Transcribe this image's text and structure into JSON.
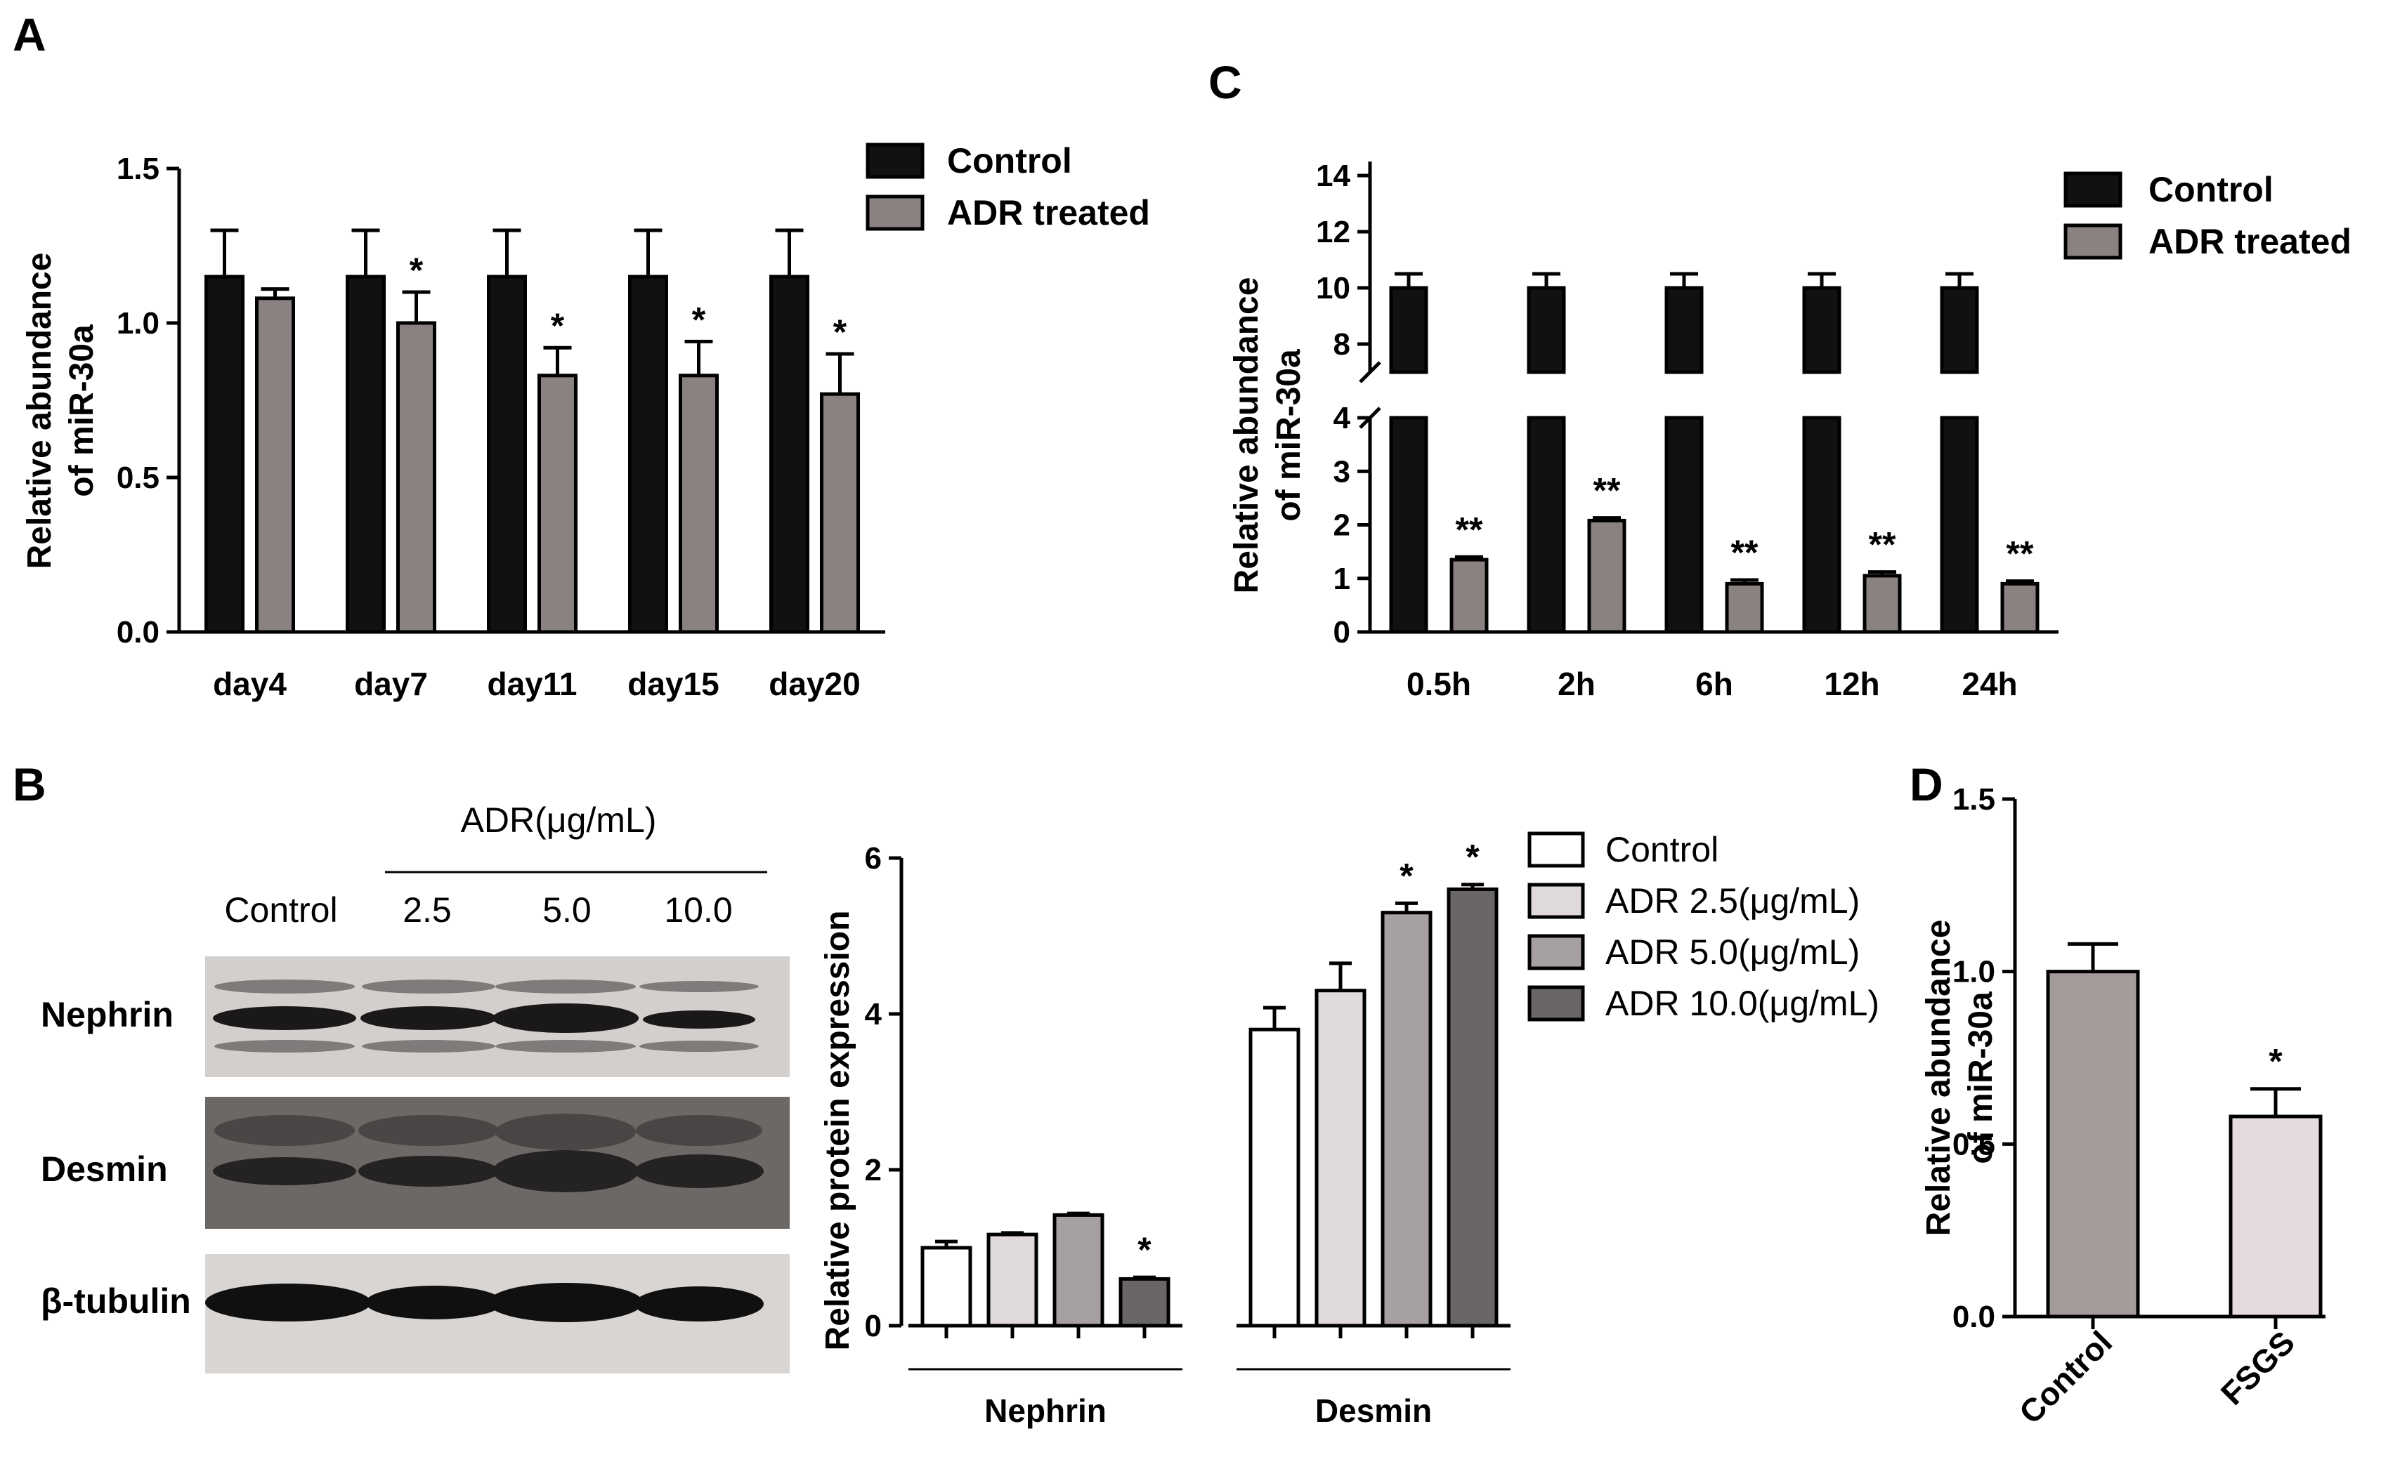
{
  "colors": {
    "control": "#111111",
    "adr": "#8a8280",
    "d_control": "#a39c9a",
    "d_fsgs": "#e4dcdc",
    "b_control": "#ffffff",
    "b_25": "#e0d9d9",
    "b_50": "#a6a0a0",
    "b_100": "#6a6666"
  },
  "panels": {
    "A": "A",
    "B": "B",
    "C": "C",
    "D": "D"
  },
  "blot": {
    "header": "ADR(μg/mL)",
    "lanes": [
      "Control",
      "2.5",
      "5.0",
      "10.0"
    ],
    "rows": [
      "Nephrin",
      "Desmin",
      "β-tubulin"
    ]
  },
  "chart_data": [
    {
      "panel": "A",
      "type": "bar",
      "ylabel_line1": "Relative abundance",
      "ylabel_line2": "of miR-30a",
      "categories": [
        "day4",
        "day7",
        "day11",
        "day15",
        "day20"
      ],
      "ylim": [
        0,
        1.5
      ],
      "yticks": [
        "0.0",
        "0.5",
        "1.0",
        "1.5"
      ],
      "legend": "top-right",
      "series": [
        {
          "name": "Control",
          "values": [
            1.15,
            1.15,
            1.15,
            1.15,
            1.15
          ],
          "errors": [
            0.15,
            0.15,
            0.15,
            0.15,
            0.15
          ]
        },
        {
          "name": "ADR treated",
          "values": [
            1.08,
            1.0,
            0.83,
            0.83,
            0.77
          ],
          "errors": [
            0.03,
            0.1,
            0.09,
            0.11,
            0.13
          ]
        }
      ],
      "annotations": [
        "",
        "*",
        "*",
        "*",
        "*"
      ]
    },
    {
      "panel": "C",
      "type": "bar",
      "ylabel_line1": "Relative abundance",
      "ylabel_line2": "of miR-30a",
      "categories": [
        "0.5h",
        "2h",
        "6h",
        "12h",
        "24h"
      ],
      "axis_break": [
        4,
        7
      ],
      "yticks": [
        "0",
        "1",
        "2",
        "3",
        "4",
        "8",
        "10",
        "12",
        "14"
      ],
      "legend": "top-right",
      "series": [
        {
          "name": "Control",
          "values": [
            10,
            10,
            10,
            10,
            10
          ],
          "errors": [
            0.5,
            0.5,
            0.5,
            0.5,
            0.5
          ]
        },
        {
          "name": "ADR treated",
          "values": [
            1.35,
            2.08,
            0.9,
            1.05,
            0.9
          ],
          "errors": [
            0.05,
            0.05,
            0.07,
            0.07,
            0.05
          ]
        }
      ],
      "annotations": [
        "**",
        "**",
        "**",
        "**",
        "**"
      ]
    },
    {
      "panel": "B",
      "type": "bar",
      "ylabel": "Relative protein expression",
      "categories": [
        "Nephrin",
        "Desmin"
      ],
      "ylim": [
        0,
        6
      ],
      "yticks": [
        "0",
        "2",
        "4",
        "6"
      ],
      "legend": "top-right",
      "series": [
        {
          "name": "Control",
          "values": [
            1.0,
            3.8
          ],
          "errors": [
            0.08,
            0.28
          ]
        },
        {
          "name": "ADR 2.5(μg/mL)",
          "values": [
            1.17,
            4.3
          ],
          "errors": [
            0.02,
            0.35
          ]
        },
        {
          "name": "ADR 5.0(μg/mL)",
          "values": [
            1.42,
            5.3
          ],
          "errors": [
            0.02,
            0.12
          ]
        },
        {
          "name": "ADR 10.0(μg/mL)",
          "values": [
            0.6,
            5.6
          ],
          "errors": [
            0.02,
            0.06
          ]
        }
      ],
      "annotations": [
        [
          "",
          "",
          "",
          "*"
        ],
        [
          "",
          "",
          "*",
          "*"
        ]
      ]
    },
    {
      "panel": "D",
      "type": "bar",
      "ylabel_line1": "Relative abundance",
      "ylabel_line2": "of miR-30a",
      "categories": [
        "Control",
        "FSGS"
      ],
      "ylim": [
        0,
        1.5
      ],
      "yticks": [
        "0.0",
        "0.5",
        "1.0",
        "1.5"
      ],
      "values": [
        1.0,
        0.58
      ],
      "errors": [
        0.08,
        0.08
      ],
      "annotations": [
        "",
        "*"
      ]
    }
  ]
}
